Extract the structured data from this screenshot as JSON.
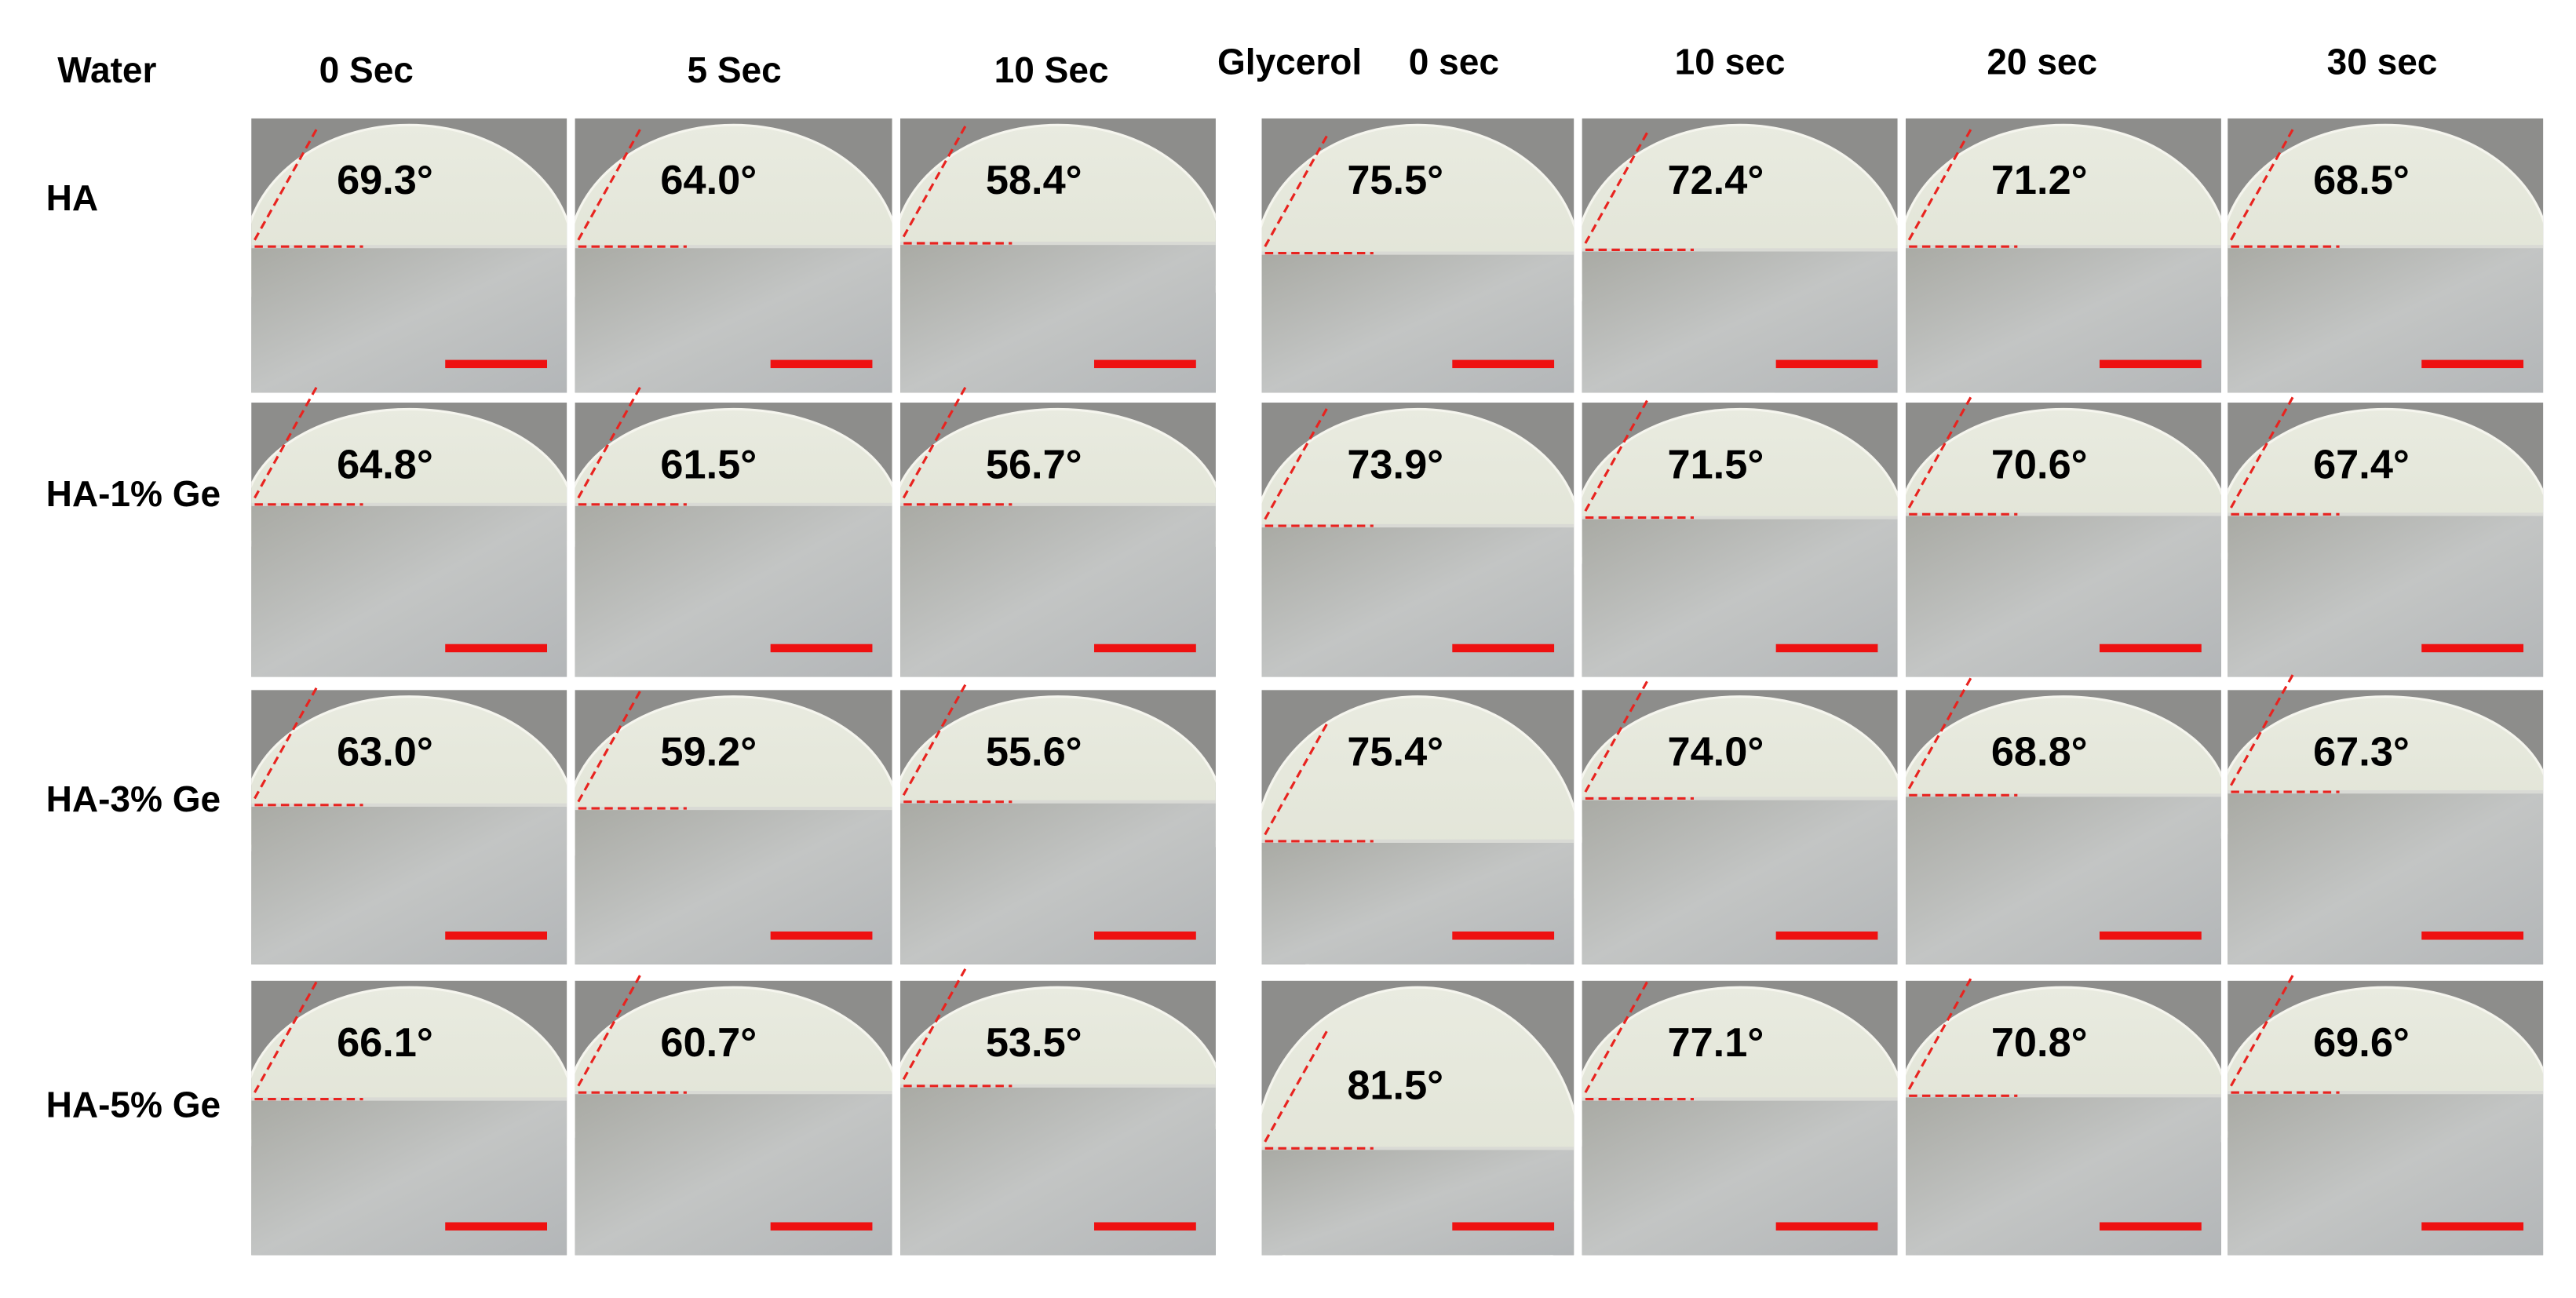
{
  "header": {
    "water_label": "Water",
    "water_times": [
      "0 Sec",
      "5 Sec",
      "10 Sec"
    ],
    "glycerol_label": "Glycerol",
    "glycerol_times": [
      "0 sec",
      "10 sec",
      "20 sec",
      "30 sec"
    ]
  },
  "rows": [
    {
      "label": "HA",
      "water": [
        "69.3°",
        "64.0°",
        "58.4°"
      ],
      "glycerol": [
        "75.5°",
        "72.4°",
        "71.2°",
        "68.5°"
      ]
    },
    {
      "label": "HA-1% Ge",
      "water": [
        "64.8°",
        "61.5°",
        "56.7°"
      ],
      "glycerol": [
        "73.9°",
        "71.5°",
        "70.6°",
        "67.4°"
      ]
    },
    {
      "label": "HA-3% Ge",
      "water": [
        "63.0°",
        "59.2°",
        "55.6°"
      ],
      "glycerol": [
        "75.4°",
        "74.0°",
        "68.8°",
        "67.3°"
      ]
    },
    {
      "label": "HA-5% Ge",
      "water": [
        "66.1°",
        "60.7°",
        "53.5°"
      ],
      "glycerol": [
        "81.5°",
        "77.1°",
        "70.8°",
        "69.6°"
      ]
    }
  ]
}
